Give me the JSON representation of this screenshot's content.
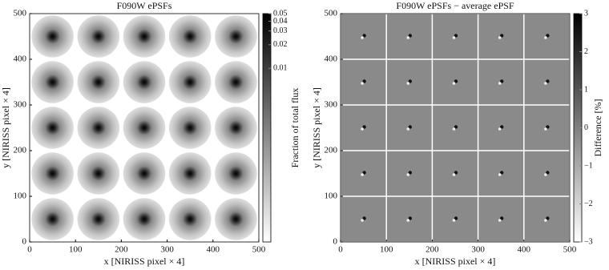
{
  "chart_data": [
    {
      "type": "image",
      "title": "F090W ePSFs",
      "xlabel": "x [NIRISS pixel × 4]",
      "ylabel": "y [NIRISS pixel × 4]",
      "x": [
        50,
        150,
        250,
        350,
        450
      ],
      "y": [
        50,
        150,
        250,
        350,
        450
      ],
      "xlim": [
        0,
        500
      ],
      "ylim": [
        0,
        500
      ],
      "xticks": [
        0,
        100,
        200,
        300,
        400,
        500
      ],
      "yticks": [
        0,
        100,
        200,
        300,
        400,
        500
      ],
      "grid": false,
      "cmap": "gray_r",
      "colorbar": {
        "label": "Fraction of total flux",
        "scale": "log",
        "lim": [
          6e-05,
          0.05
        ],
        "ticks": [
          0.01,
          0.02,
          0.03,
          0.04,
          0.05
        ]
      }
    },
    {
      "type": "difference",
      "title": "F090W ePSFs − average ePSF",
      "xlabel": "x [NIRISS pixel × 4]",
      "ylabel": "y [NIRISS pixel × 4]",
      "x": [
        50,
        150,
        250,
        350,
        450
      ],
      "y": [
        50,
        150,
        250,
        350,
        450
      ],
      "xlim": [
        0,
        500
      ],
      "ylim": [
        0,
        500
      ],
      "xticks": [
        0,
        100,
        200,
        300,
        400,
        500
      ],
      "yticks": [
        0,
        100,
        200,
        300,
        400,
        500
      ],
      "grid": true,
      "cmap": "gray_r",
      "colorbar": {
        "label": "Difference [%]",
        "scale": "linear",
        "lim": [
          -3,
          3
        ],
        "ticks": [
          {
            "value": -3,
            "label": "−3"
          },
          {
            "value": -2,
            "label": "−2"
          },
          {
            "value": -1,
            "label": "−1"
          },
          0,
          1,
          2,
          3
        ]
      }
    }
  ]
}
